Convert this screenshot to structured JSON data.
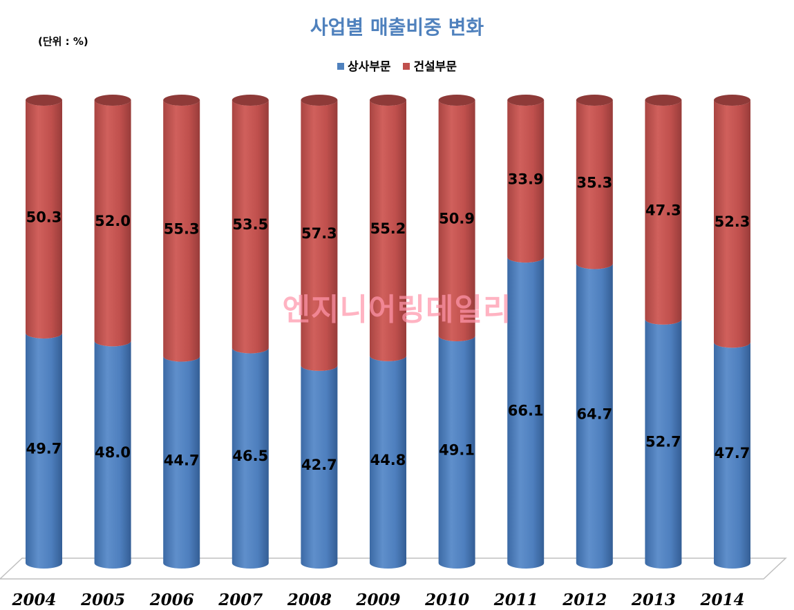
{
  "chart_data": {
    "type": "bar",
    "stacked": true,
    "title": "사업별 매출비중 변화",
    "unit_note": "(단위 : %)",
    "categories": [
      "2004",
      "2005",
      "2006",
      "2007",
      "2008",
      "2009",
      "2010",
      "2011",
      "2012",
      "2013",
      "2014"
    ],
    "series": [
      {
        "name": "상사부문",
        "color": "#4f81bd",
        "values": [
          49.7,
          48.0,
          44.7,
          46.5,
          42.7,
          44.8,
          49.1,
          66.1,
          64.7,
          52.7,
          47.7
        ],
        "labels": [
          "49.7",
          "48.0",
          "44.7",
          "46.5",
          "42.7",
          "44.8",
          "49.1",
          "66.1",
          "64.7",
          "52.7",
          "47.7"
        ]
      },
      {
        "name": "건설부문",
        "color": "#c0504d",
        "values": [
          50.3,
          52.0,
          55.3,
          53.5,
          57.3,
          55.2,
          50.9,
          33.9,
          35.3,
          47.3,
          52.3
        ],
        "labels": [
          "50.3",
          "52.0",
          "55.3",
          "53.5",
          "57.3",
          "55.2",
          "50.9",
          "33.9",
          "35.3",
          "47.3",
          "52.3"
        ]
      }
    ],
    "ylim": [
      0,
      100
    ],
    "grid": false,
    "legend": "top-center",
    "watermark": "엔지니어링데일리"
  }
}
